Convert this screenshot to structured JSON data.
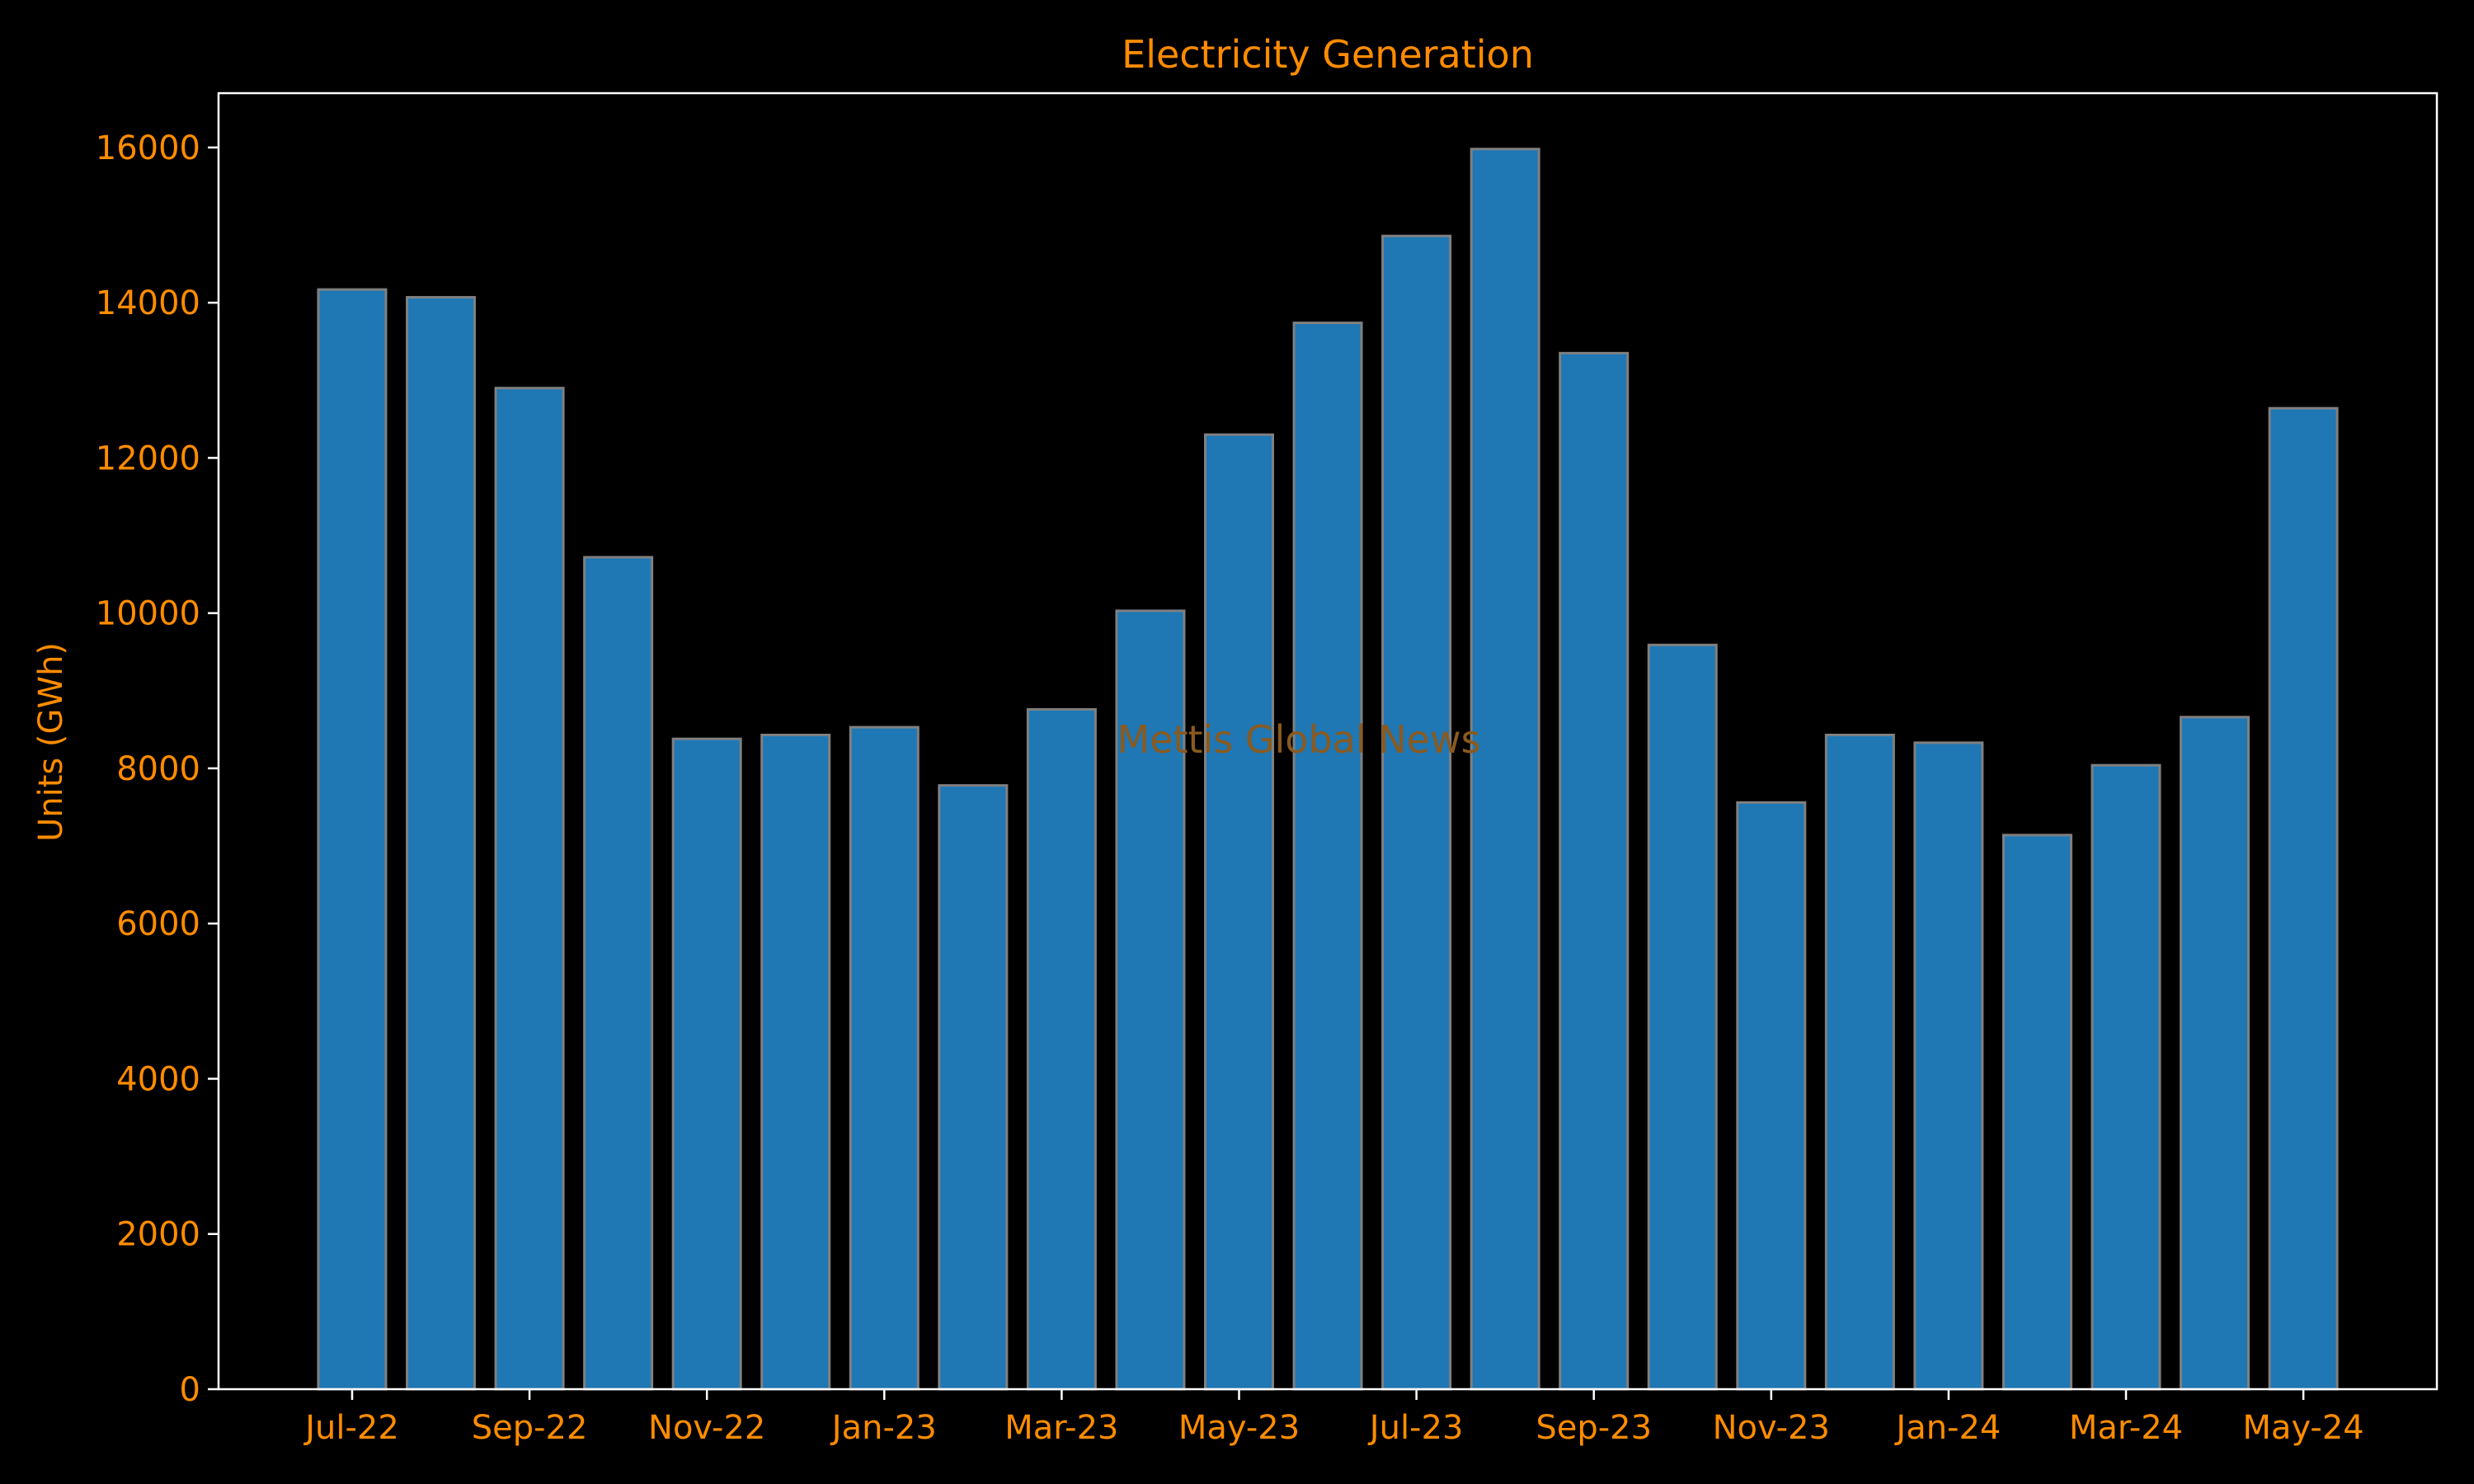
{
  "colors": {
    "background": "#000000",
    "bar_fill": "#1f77b4",
    "bar_edge": "#808080",
    "text": "#ff8c00",
    "axes": "#ffffff",
    "watermark": "#8a5a1f"
  },
  "watermark": "Mettis Global News",
  "chart_data": {
    "type": "bar",
    "title": "Electricity Generation",
    "xlabel": "",
    "ylabel": "Units (GWh)",
    "ylim": [
      0,
      16700
    ],
    "yticks": [
      0,
      2000,
      4000,
      6000,
      8000,
      10000,
      12000,
      14000,
      16000
    ],
    "ytick_labels": [
      "0",
      "2000",
      "4000",
      "6000",
      "8000",
      "10000",
      "12000",
      "14000",
      "16000"
    ],
    "categories": [
      "Jul-22",
      "Aug-22",
      "Sep-22",
      "Oct-22",
      "Nov-22",
      "Dec-22",
      "Jan-23",
      "Feb-23",
      "Mar-23",
      "Apr-23",
      "May-23",
      "Jun-23",
      "Jul-23",
      "Aug-23",
      "Sep-23",
      "Oct-23",
      "Nov-23",
      "Dec-23",
      "Jan-24",
      "Feb-24",
      "Mar-24",
      "Apr-24",
      "May-24"
    ],
    "xtick_labels": [
      "Jul-22",
      "Sep-22",
      "Nov-22",
      "Jan-23",
      "Mar-23",
      "May-23",
      "Jul-23",
      "Sep-23",
      "Nov-23",
      "Jan-24",
      "Mar-24",
      "May-24"
    ],
    "values": [
      14170,
      14070,
      12900,
      10720,
      8380,
      8430,
      8530,
      7780,
      8760,
      10030,
      12300,
      13740,
      14860,
      15980,
      13350,
      9590,
      7560,
      8430,
      8330,
      7140,
      8040,
      8660,
      12640
    ],
    "grid": false,
    "legend": "none"
  }
}
